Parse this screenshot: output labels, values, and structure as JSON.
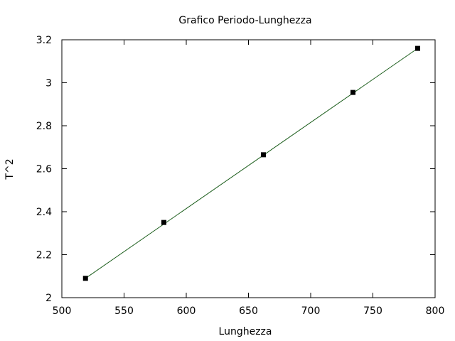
{
  "chart_data": {
    "type": "scatter",
    "title": "Grafico Periodo-Lunghezza",
    "xlabel": "Lunghezza",
    "ylabel": "T^2",
    "xlim": [
      500,
      800
    ],
    "ylim": [
      2.0,
      3.2
    ],
    "xticks": [
      500,
      550,
      600,
      650,
      700,
      750,
      800
    ],
    "yticks": [
      2,
      2.2,
      2.4,
      2.6,
      2.8,
      3,
      3.2
    ],
    "xtick_labels": [
      "500",
      "550",
      "600",
      "650",
      "700",
      "750",
      "800"
    ],
    "ytick_labels": [
      "2",
      "2.2",
      "2.4",
      "2.6",
      "2.8",
      "3",
      "3.2"
    ],
    "grid": false,
    "series": [
      {
        "marker": "square",
        "color": "#000000",
        "points": [
          {
            "x": 519,
            "y": 2.09
          },
          {
            "x": 582,
            "y": 2.35
          },
          {
            "x": 662,
            "y": 2.665
          },
          {
            "x": 734,
            "y": 2.955
          },
          {
            "x": 786,
            "y": 3.16
          }
        ]
      }
    ],
    "fit_line": {
      "color": "#1a5c1a",
      "points": [
        {
          "x": 519,
          "y": 2.09
        },
        {
          "x": 786,
          "y": 3.16
        }
      ]
    }
  }
}
